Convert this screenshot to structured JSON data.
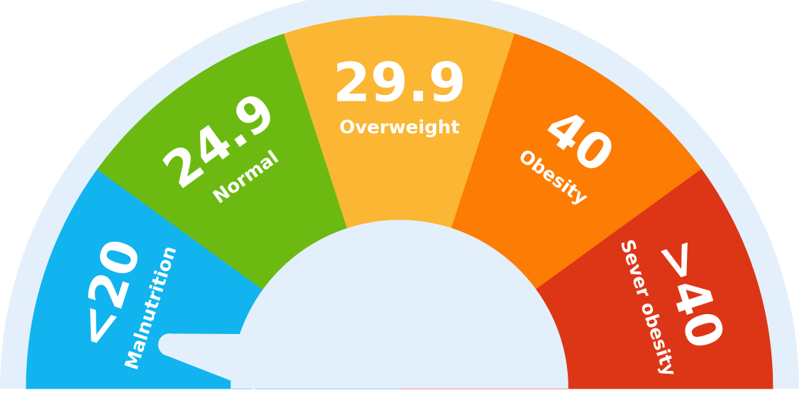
{
  "gauge": {
    "colors": {
      "outer_ring": "#e3f0fb",
      "center_hub": "#e3f0fb",
      "needle": "#e3f0fb"
    },
    "needle_level": 0.06,
    "segments": [
      {
        "value": "<20",
        "label": "Malnutrition",
        "color": "#11b4ef"
      },
      {
        "value": "24.9",
        "label": "Normal",
        "color": "#6cba11"
      },
      {
        "value": "29.9",
        "label": "Overweight",
        "color": "#fbb634"
      },
      {
        "value": "40",
        "label": "Obesity",
        "color": "#fd7c03"
      },
      {
        "value": ">40",
        "label": "Sever obesity",
        "color": "#dd3616"
      }
    ]
  }
}
